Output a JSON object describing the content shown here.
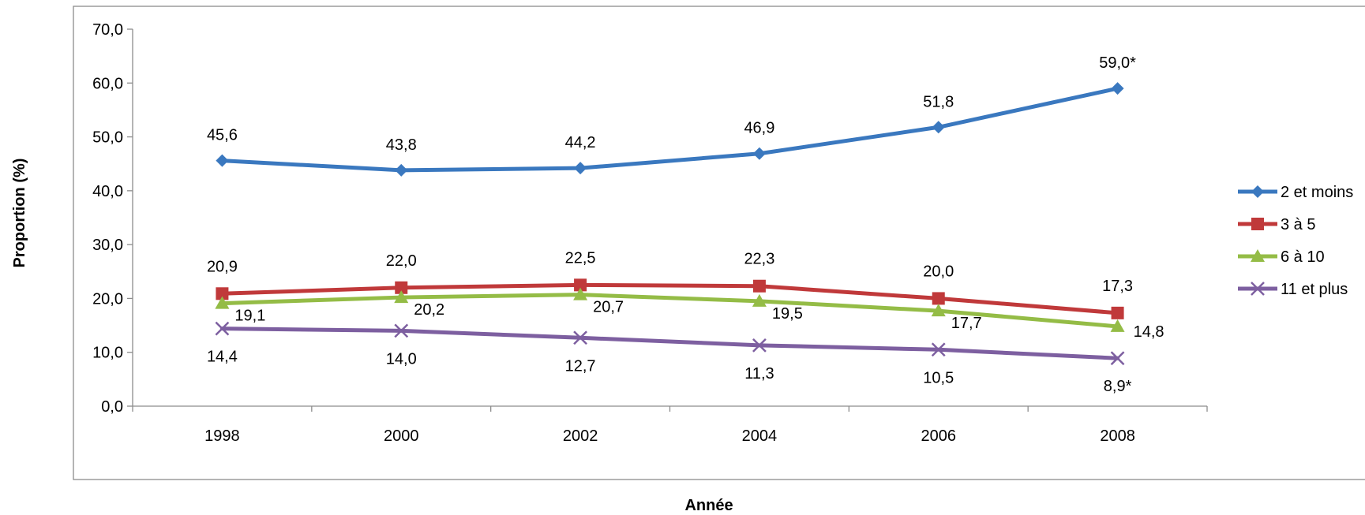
{
  "chart_data": {
    "type": "line",
    "title": "",
    "xlabel": "Année",
    "ylabel": "Proportion (%)",
    "categories": [
      "1998",
      "2000",
      "2002",
      "2004",
      "2006",
      "2008"
    ],
    "ylim": [
      0,
      70
    ],
    "y_ticks": [
      "0,0",
      "10,0",
      "20,0",
      "30,0",
      "40,0",
      "50,0",
      "60,0",
      "70,0"
    ],
    "grid": false,
    "legend_position": "right",
    "series": [
      {
        "name": "2 et moins",
        "color": "#3a78bf",
        "marker": "diamond",
        "values": [
          45.6,
          43.8,
          44.2,
          46.9,
          51.8,
          59.0
        ],
        "labels": [
          "45,6",
          "43,8",
          "44,2",
          "46,9",
          "51,8",
          "59,0*"
        ]
      },
      {
        "name": "3 à 5",
        "color": "#c0393a",
        "marker": "square",
        "values": [
          20.9,
          22.0,
          22.5,
          22.3,
          20.0,
          17.3
        ],
        "labels": [
          "20,9",
          "22,0",
          "22,5",
          "22,3",
          "20,0",
          "17,3"
        ]
      },
      {
        "name": "6 à 10",
        "color": "#94bc46",
        "marker": "triangle",
        "values": [
          19.1,
          20.2,
          20.7,
          19.5,
          17.7,
          14.8
        ],
        "labels": [
          "19,1",
          "20,2",
          "20,7",
          "19,5",
          "17,7",
          "14,8"
        ]
      },
      {
        "name": "11 et plus",
        "color": "#7d5fa0",
        "marker": "x",
        "values": [
          14.4,
          14.0,
          12.7,
          11.3,
          10.5,
          8.9
        ],
        "labels": [
          "14,4",
          "14,0",
          "12,7",
          "11,3",
          "10,5",
          "8,9*"
        ]
      }
    ]
  }
}
